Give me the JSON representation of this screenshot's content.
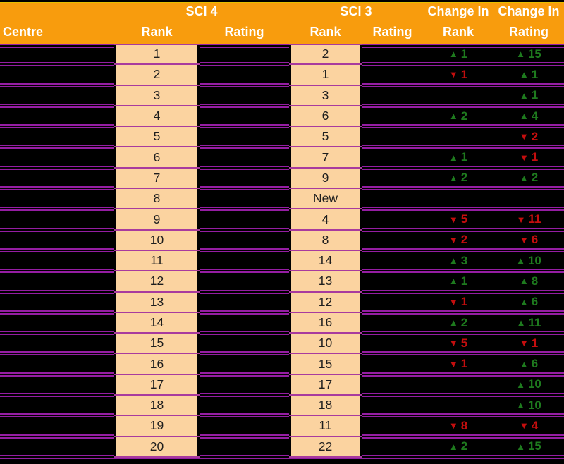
{
  "header": {
    "centre": "Centre",
    "sci4_group": "SCI 4",
    "sci3_group": "SCI 3",
    "change_in_rank_line1": "Change In",
    "change_in_rating_line1": "Change In",
    "sub_labels": [
      "Rank",
      "Rating",
      "Rank",
      "Rating",
      "Rank",
      "Rating"
    ]
  },
  "icons": {
    "up": "▲",
    "down": "▼",
    "up_name": "up-triangle-icon",
    "down_name": "down-triangle-icon"
  },
  "colors": {
    "header_orange": "#F89C0D",
    "top_line_yellow": "#E8BE00",
    "rank_fill_peach": "#FBD3A0",
    "separator_purple": "#951DA3",
    "rank_separator_magenta": "#A83A9E",
    "positive_green": "#1E7A1E",
    "negative_red": "#C40E0E",
    "background_black": "#000000",
    "header_text": "#FFFFFF"
  },
  "chart_data": {
    "type": "table",
    "title": "",
    "column_groups": [
      "Centre",
      "SCI 4",
      "SCI 3",
      "Change In Rank",
      "Change In Rating"
    ],
    "columns": [
      "Centre",
      "SCI 4 Rank",
      "SCI 4 Rating",
      "SCI 3 Rank",
      "SCI 3 Rating",
      "Change In Rank",
      "Change In Rating"
    ],
    "rows": [
      {
        "centre": "",
        "sci4_rank": "1",
        "sci4_rating": "",
        "sci3_rank": "2",
        "sci3_rating": "",
        "change_rank": {
          "dir": "up",
          "value": "1"
        },
        "change_rating": {
          "dir": "up",
          "value": "15"
        }
      },
      {
        "centre": "",
        "sci4_rank": "2",
        "sci4_rating": "",
        "sci3_rank": "1",
        "sci3_rating": "",
        "change_rank": {
          "dir": "down",
          "value": "1"
        },
        "change_rating": {
          "dir": "up",
          "value": "1"
        }
      },
      {
        "centre": "",
        "sci4_rank": "3",
        "sci4_rating": "",
        "sci3_rank": "3",
        "sci3_rating": "",
        "change_rank": {
          "dir": "",
          "value": ""
        },
        "change_rating": {
          "dir": "up",
          "value": "1"
        }
      },
      {
        "centre": "",
        "sci4_rank": "4",
        "sci4_rating": "",
        "sci3_rank": "6",
        "sci3_rating": "",
        "change_rank": {
          "dir": "up",
          "value": "2"
        },
        "change_rating": {
          "dir": "up",
          "value": "4"
        }
      },
      {
        "centre": "",
        "sci4_rank": "5",
        "sci4_rating": "",
        "sci3_rank": "5",
        "sci3_rating": "",
        "change_rank": {
          "dir": "",
          "value": ""
        },
        "change_rating": {
          "dir": "down",
          "value": "2"
        }
      },
      {
        "centre": "",
        "sci4_rank": "6",
        "sci4_rating": "",
        "sci3_rank": "7",
        "sci3_rating": "",
        "change_rank": {
          "dir": "up",
          "value": "1"
        },
        "change_rating": {
          "dir": "down",
          "value": "1"
        }
      },
      {
        "centre": "",
        "sci4_rank": "7",
        "sci4_rating": "",
        "sci3_rank": "9",
        "sci3_rating": "",
        "change_rank": {
          "dir": "up",
          "value": "2"
        },
        "change_rating": {
          "dir": "up",
          "value": "2"
        }
      },
      {
        "centre": "",
        "sci4_rank": "8",
        "sci4_rating": "",
        "sci3_rank": "New",
        "sci3_rating": "",
        "change_rank": {
          "dir": "",
          "value": ""
        },
        "change_rating": {
          "dir": "",
          "value": ""
        }
      },
      {
        "centre": "",
        "sci4_rank": "9",
        "sci4_rating": "",
        "sci3_rank": "4",
        "sci3_rating": "",
        "change_rank": {
          "dir": "down",
          "value": "5"
        },
        "change_rating": {
          "dir": "down",
          "value": "11"
        }
      },
      {
        "centre": "",
        "sci4_rank": "10",
        "sci4_rating": "",
        "sci3_rank": "8",
        "sci3_rating": "",
        "change_rank": {
          "dir": "down",
          "value": "2"
        },
        "change_rating": {
          "dir": "down",
          "value": "6"
        }
      },
      {
        "centre": "",
        "sci4_rank": "11",
        "sci4_rating": "",
        "sci3_rank": "14",
        "sci3_rating": "",
        "change_rank": {
          "dir": "up",
          "value": "3"
        },
        "change_rating": {
          "dir": "up",
          "value": "10"
        }
      },
      {
        "centre": "",
        "sci4_rank": "12",
        "sci4_rating": "",
        "sci3_rank": "13",
        "sci3_rating": "",
        "change_rank": {
          "dir": "up",
          "value": "1"
        },
        "change_rating": {
          "dir": "up",
          "value": "8"
        }
      },
      {
        "centre": "",
        "sci4_rank": "13",
        "sci4_rating": "",
        "sci3_rank": "12",
        "sci3_rating": "",
        "change_rank": {
          "dir": "down",
          "value": "1"
        },
        "change_rating": {
          "dir": "up",
          "value": "6"
        }
      },
      {
        "centre": "",
        "sci4_rank": "14",
        "sci4_rating": "",
        "sci3_rank": "16",
        "sci3_rating": "",
        "change_rank": {
          "dir": "up",
          "value": "2"
        },
        "change_rating": {
          "dir": "up",
          "value": "11"
        }
      },
      {
        "centre": "",
        "sci4_rank": "15",
        "sci4_rating": "",
        "sci3_rank": "10",
        "sci3_rating": "",
        "change_rank": {
          "dir": "down",
          "value": "5"
        },
        "change_rating": {
          "dir": "down",
          "value": "1"
        }
      },
      {
        "centre": "",
        "sci4_rank": "16",
        "sci4_rating": "",
        "sci3_rank": "15",
        "sci3_rating": "",
        "change_rank": {
          "dir": "down",
          "value": "1"
        },
        "change_rating": {
          "dir": "up",
          "value": "6"
        }
      },
      {
        "centre": "",
        "sci4_rank": "17",
        "sci4_rating": "",
        "sci3_rank": "17",
        "sci3_rating": "",
        "change_rank": {
          "dir": "",
          "value": ""
        },
        "change_rating": {
          "dir": "up",
          "value": "10"
        }
      },
      {
        "centre": "",
        "sci4_rank": "18",
        "sci4_rating": "",
        "sci3_rank": "18",
        "sci3_rating": "",
        "change_rank": {
          "dir": "",
          "value": ""
        },
        "change_rating": {
          "dir": "up",
          "value": "10"
        }
      },
      {
        "centre": "",
        "sci4_rank": "19",
        "sci4_rating": "",
        "sci3_rank": "11",
        "sci3_rating": "",
        "change_rank": {
          "dir": "down",
          "value": "8"
        },
        "change_rating": {
          "dir": "down",
          "value": "4"
        }
      },
      {
        "centre": "",
        "sci4_rank": "20",
        "sci4_rating": "",
        "sci3_rank": "22",
        "sci3_rating": "",
        "change_rank": {
          "dir": "up",
          "value": "2"
        },
        "change_rating": {
          "dir": "up",
          "value": "15"
        }
      }
    ]
  }
}
